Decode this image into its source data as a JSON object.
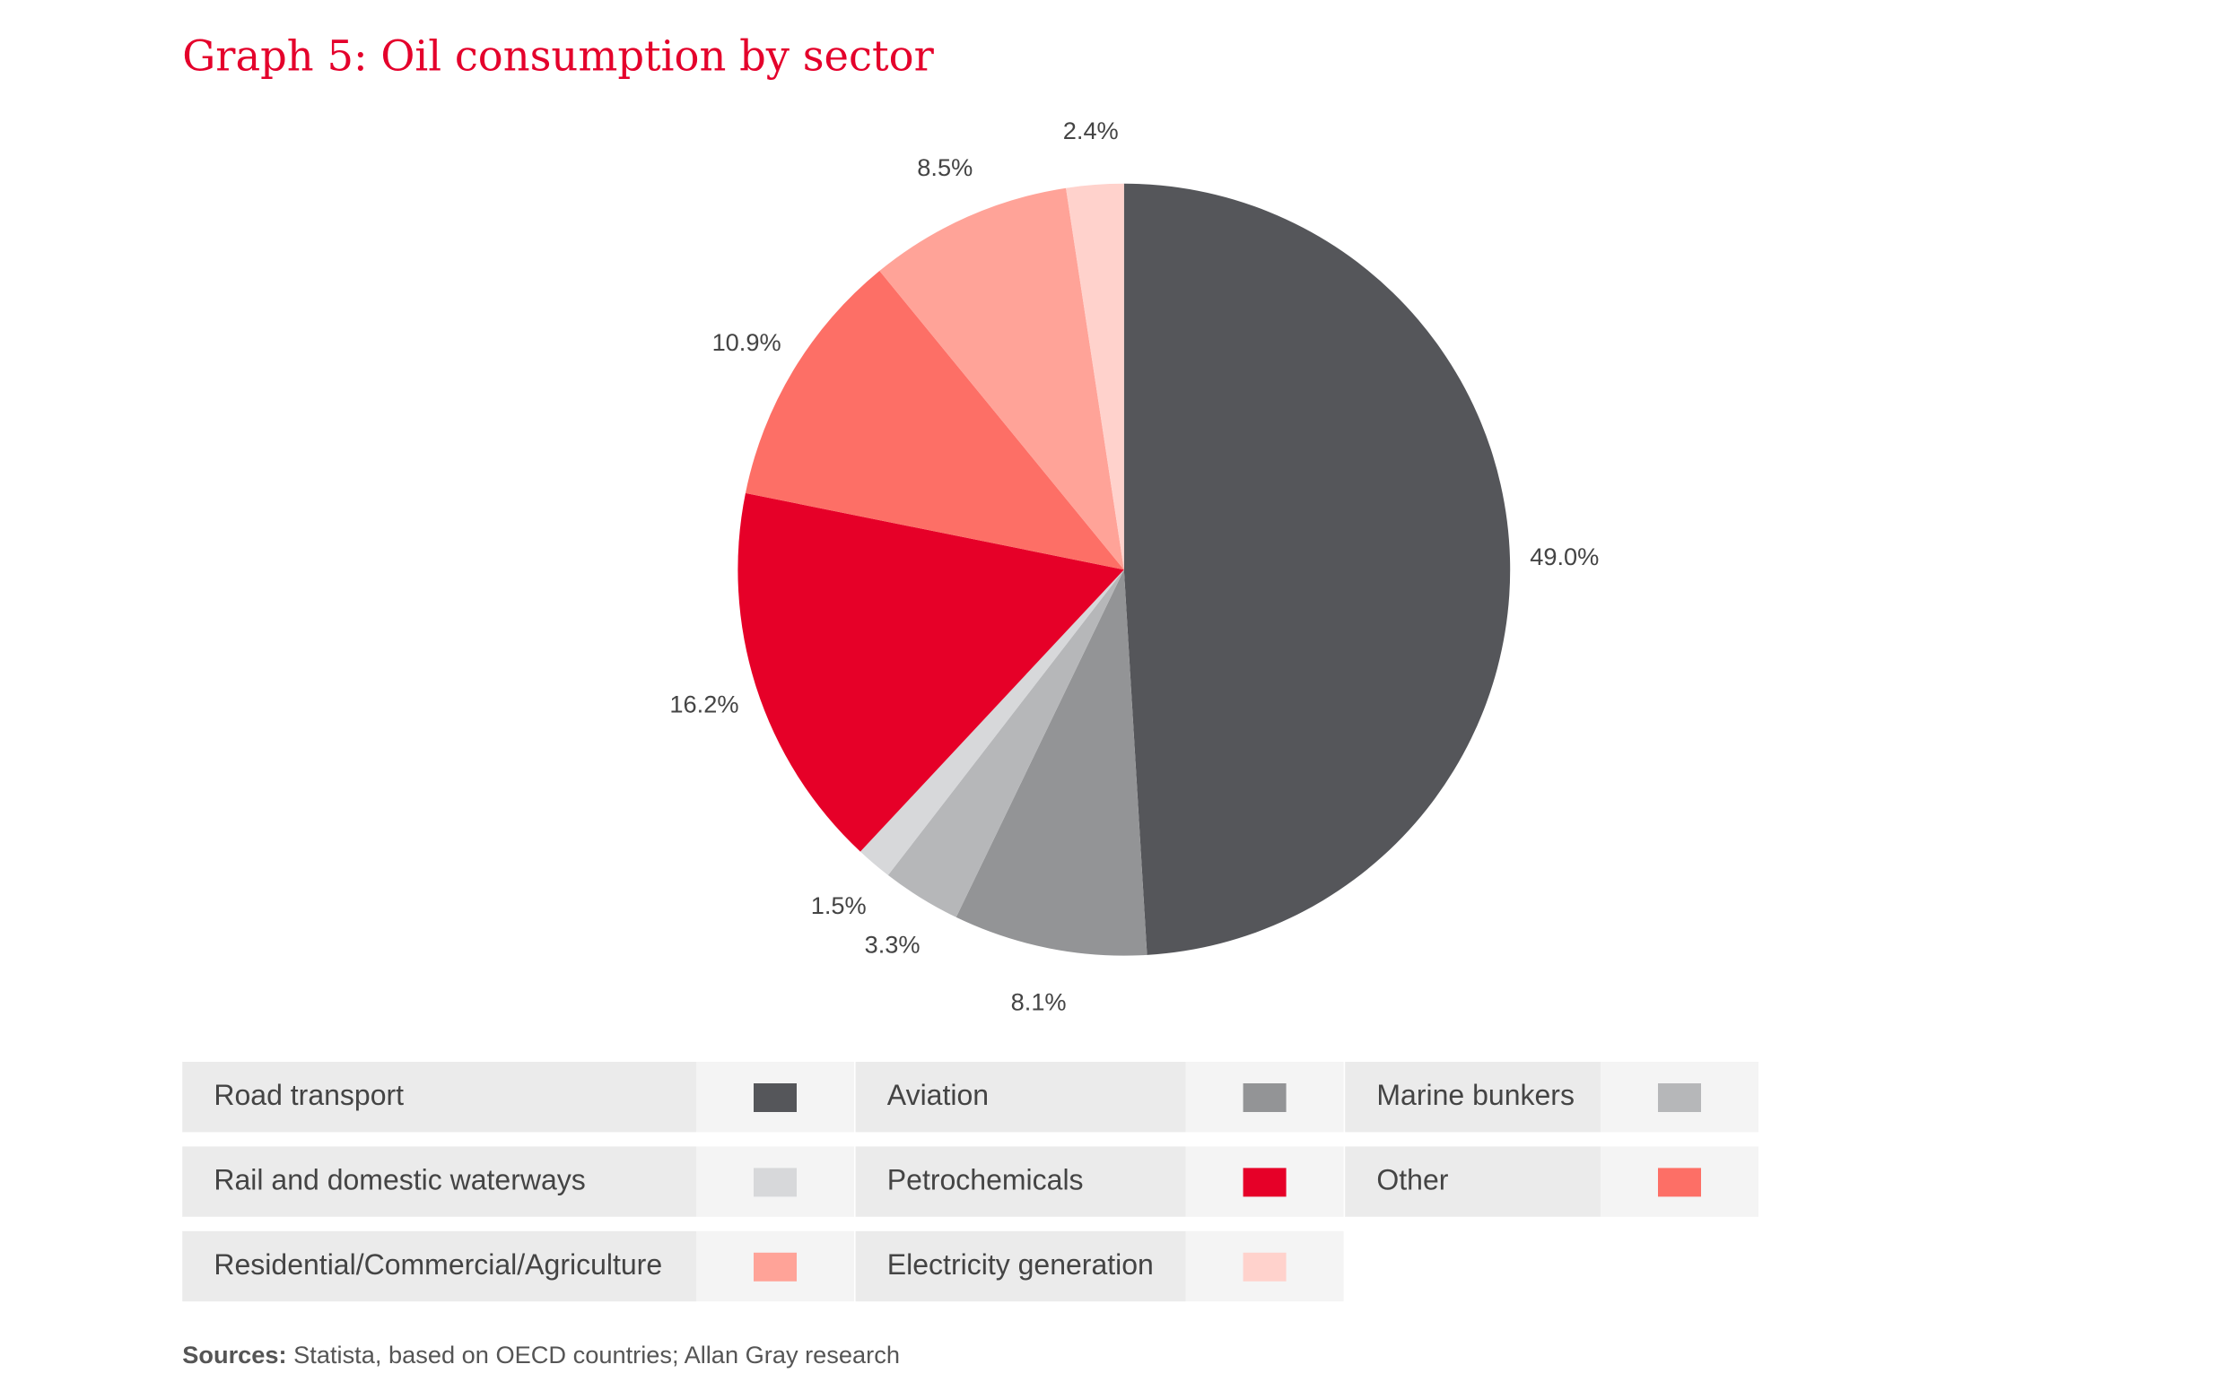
{
  "title": "Graph 5: Oil consumption by sector",
  "chart_data": {
    "type": "pie",
    "title": "Graph 5: Oil consumption by sector",
    "start": "12 o'clock",
    "direction": "clockwise",
    "slices": [
      {
        "label": "Road transport",
        "value": 49.0,
        "display": "49.0%",
        "color": "#55565a"
      },
      {
        "label": "Aviation",
        "value": 8.1,
        "display": "8.1%",
        "color": "#939496"
      },
      {
        "label": "Marine bunkers",
        "value": 3.3,
        "display": "3.3%",
        "color": "#b6b7b9"
      },
      {
        "label": "Rail and domestic waterways",
        "value": 1.5,
        "display": "1.5%",
        "color": "#d7d8da"
      },
      {
        "label": "Petrochemicals",
        "value": 16.2,
        "display": "16.2%",
        "color": "#e60028"
      },
      {
        "label": "Other",
        "value": 10.9,
        "display": "10.9%",
        "color": "#fd6f66"
      },
      {
        "label": "Residential/Commercial/Agriculture",
        "value": 8.5,
        "display": "8.5%",
        "color": "#ffa398"
      },
      {
        "label": "Electricity generation",
        "value": 2.4,
        "display": "2.4%",
        "color": "#ffd2cc"
      }
    ],
    "legend_placement": "bottom"
  },
  "sources": {
    "label": "Sources:",
    "text": " Statista, based on OECD countries; Allan Gray research"
  }
}
